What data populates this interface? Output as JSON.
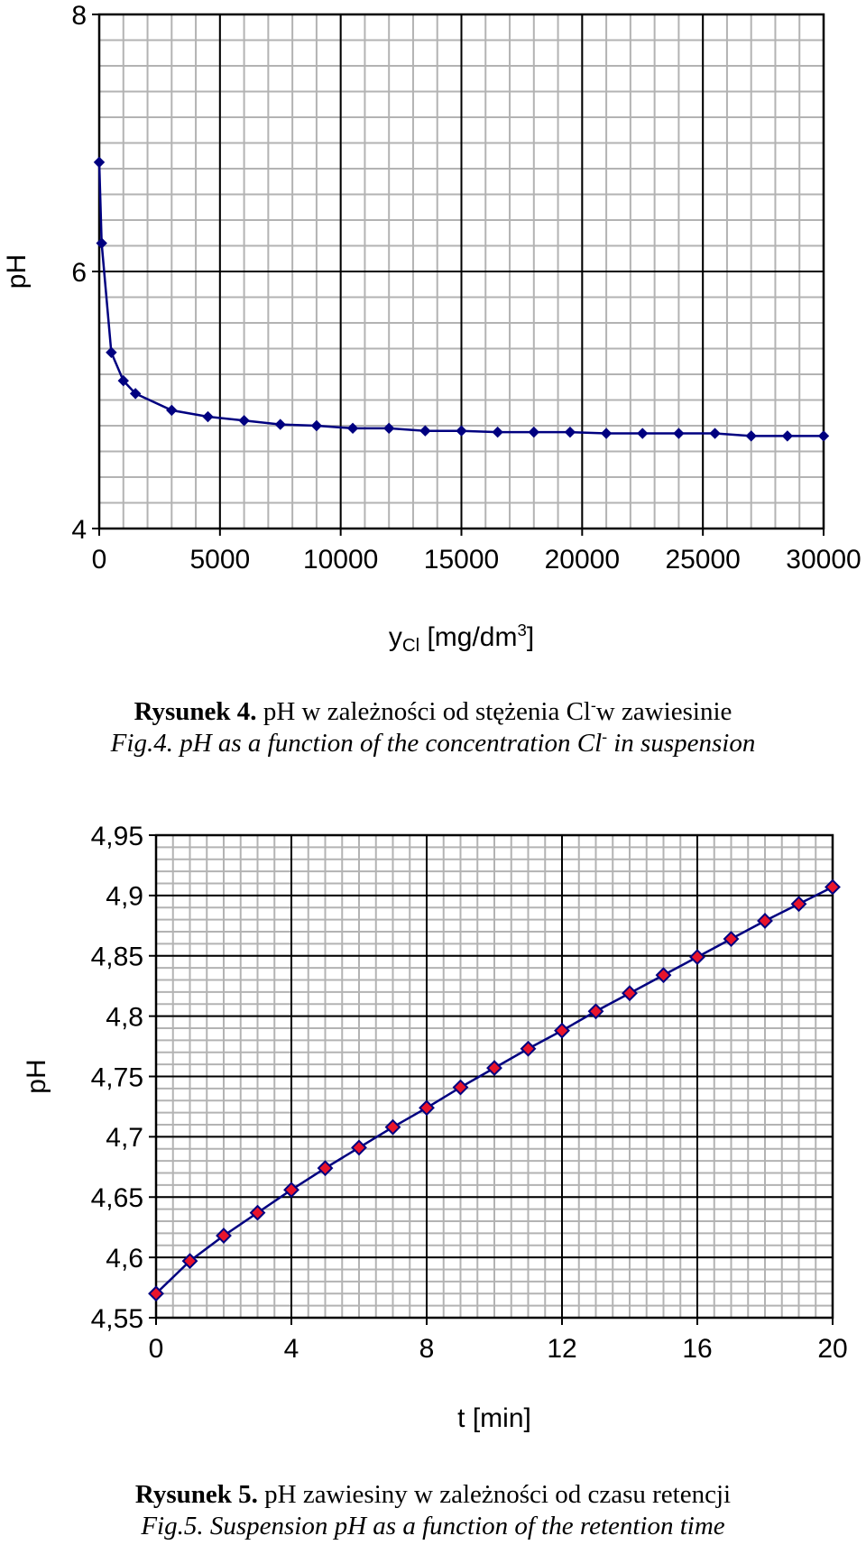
{
  "captions": {
    "fig4_label": "Rysunek 4.",
    "fig4_pl_before": " pH w zależności od stężenia Cl",
    "fig4_pl_sup": "-",
    "fig4_pl_after": "w zawiesinie",
    "fig4_en_before": "Fig.4. pH as a function of the concentration Cl",
    "fig4_en_sup": "-",
    "fig4_en_after": " in suspension",
    "fig5_label": "Rysunek 5.",
    "fig5_pl": " pH zawiesiny w zależności od czasu retencji",
    "fig5_en": "Fig.5. Suspension pH as a function of the retention time"
  },
  "chart_data": [
    {
      "type": "line",
      "xlabel": "y",
      "xlabel_sub": "Cl",
      "xlabel_unit": "[mg/dm",
      "xlabel_sup": "3",
      "xlabel_close": "]",
      "ylabel": "pH",
      "xlim": [
        0,
        30000
      ],
      "ylim": [
        4,
        8
      ],
      "xticks": [
        "0",
        "5000",
        "10000",
        "15000",
        "20000",
        "25000",
        "30000"
      ],
      "yticks": [
        "4",
        "6",
        "8"
      ],
      "grid": true,
      "colors": {
        "line": "#000080",
        "marker": "#000080"
      },
      "marker": "diamond",
      "x": [
        0,
        100,
        500,
        1000,
        1500,
        3000,
        4500,
        6000,
        7500,
        9000,
        10500,
        12000,
        13500,
        15000,
        16500,
        18000,
        19500,
        21000,
        22500,
        24000,
        25500,
        27000,
        28500,
        30000
      ],
      "y": [
        6.85,
        6.22,
        5.37,
        5.15,
        5.05,
        4.92,
        4.87,
        4.84,
        4.81,
        4.8,
        4.78,
        4.78,
        4.76,
        4.76,
        4.75,
        4.75,
        4.75,
        4.74,
        4.74,
        4.74,
        4.74,
        4.72,
        4.72,
        4.72
      ]
    },
    {
      "type": "line",
      "xlabel": "t [min]",
      "ylabel": "pH",
      "xlim": [
        0,
        20
      ],
      "ylim": [
        4.55,
        4.95
      ],
      "xticks": [
        "0",
        "4",
        "8",
        "12",
        "16",
        "20"
      ],
      "yticks": [
        "4,55",
        "4,6",
        "4,65",
        "4,7",
        "4,75",
        "4,8",
        "4,85",
        "4,9",
        "4,95"
      ],
      "grid": true,
      "colors": {
        "line": "#000080",
        "marker_fill": "#e8142c",
        "marker_edge": "#000080"
      },
      "marker": "diamond",
      "x": [
        0,
        1,
        2,
        3,
        4,
        5,
        6,
        7,
        8,
        9,
        10,
        11,
        12,
        13,
        14,
        15,
        16,
        17,
        18,
        19,
        20
      ],
      "y": [
        4.57,
        4.597,
        4.618,
        4.637,
        4.656,
        4.674,
        4.691,
        4.708,
        4.724,
        4.741,
        4.757,
        4.773,
        4.788,
        4.804,
        4.819,
        4.834,
        4.849,
        4.864,
        4.879,
        4.893,
        4.907
      ]
    }
  ]
}
